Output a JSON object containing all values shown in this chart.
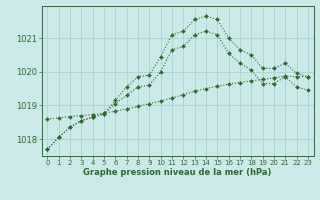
{
  "hours": [
    0,
    1,
    2,
    3,
    4,
    5,
    6,
    7,
    8,
    9,
    10,
    11,
    12,
    13,
    14,
    15,
    16,
    17,
    18,
    19,
    20,
    21,
    22,
    23
  ],
  "line_main": [
    1017.7,
    1018.05,
    1018.35,
    1018.55,
    1018.65,
    1018.75,
    1019.15,
    1019.55,
    1019.85,
    1019.9,
    1020.45,
    1021.1,
    1021.2,
    1021.55,
    1021.65,
    1021.55,
    1021.0,
    1020.65,
    1020.5,
    1020.1,
    1020.1,
    1020.25,
    1019.95,
    1019.85
  ],
  "line_alt": [
    1017.7,
    1018.05,
    1018.35,
    1018.55,
    1018.65,
    1018.75,
    1019.05,
    1019.3,
    1019.55,
    1019.6,
    1020.0,
    1020.65,
    1020.75,
    1021.1,
    1021.2,
    1021.1,
    1020.55,
    1020.25,
    1020.05,
    1019.65,
    1019.65,
    1019.85,
    1019.55,
    1019.45
  ],
  "line_trend": [
    1018.6,
    1018.63,
    1018.67,
    1018.7,
    1018.73,
    1018.77,
    1018.83,
    1018.9,
    1018.97,
    1019.05,
    1019.13,
    1019.22,
    1019.32,
    1019.42,
    1019.5,
    1019.57,
    1019.63,
    1019.68,
    1019.73,
    1019.77,
    1019.82,
    1019.87,
    1019.85,
    1019.85
  ],
  "yticks": [
    1018,
    1019,
    1020,
    1021
  ],
  "ylim": [
    1017.5,
    1021.95
  ],
  "xlim": [
    -0.5,
    23.5
  ],
  "bg_color": "#cce8e8",
  "grid_color": "#a8d4d4",
  "line_color": "#2d6b2d",
  "xlabel": "Graphe pression niveau de la mer (hPa)"
}
